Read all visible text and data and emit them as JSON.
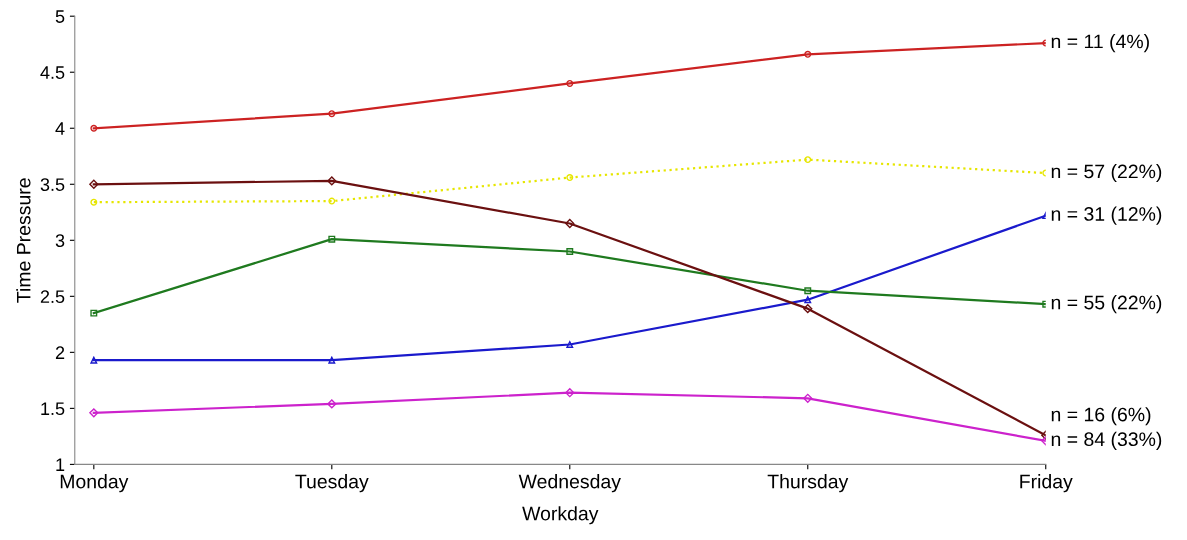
{
  "chart_data": {
    "type": "line",
    "xlabel": "Workday",
    "ylabel": "Time Pressure",
    "categories": [
      "Monday",
      "Tuesday",
      "Wednesday",
      "Thursday",
      "Friday"
    ],
    "ylim": [
      1,
      5
    ],
    "yticks": [
      1,
      1.5,
      2,
      2.5,
      3,
      3.5,
      4,
      4.5,
      5
    ],
    "grid": false,
    "legend": false,
    "series": [
      {
        "name": "n = 11 (4%)",
        "color": "#cc2222",
        "marker": "circle",
        "line_style": "solid",
        "values": [
          4.0,
          4.13,
          4.4,
          4.66,
          4.76
        ]
      },
      {
        "name": "n = 57 (22%)",
        "color": "#e6e600",
        "marker": "circle",
        "line_style": "dotted",
        "values": [
          3.34,
          3.35,
          3.56,
          3.72,
          3.6
        ]
      },
      {
        "name": "n = 31 (12%)",
        "color": "#1a1acc",
        "marker": "triangle",
        "line_style": "solid",
        "values": [
          1.93,
          1.93,
          2.07,
          2.47,
          3.22
        ]
      },
      {
        "name": "n = 55 (22%)",
        "color": "#1f7a1f",
        "marker": "square",
        "line_style": "solid",
        "values": [
          2.35,
          3.01,
          2.9,
          2.55,
          2.43
        ]
      },
      {
        "name": "n = 16 (6%)",
        "color": "#6b1010",
        "marker": "diamond",
        "line_style": "solid",
        "values": [
          3.5,
          3.53,
          3.15,
          2.39,
          1.26
        ]
      },
      {
        "name": "n = 84 (33%)",
        "color": "#cc22cc",
        "marker": "diamond",
        "line_style": "solid",
        "values": [
          1.46,
          1.54,
          1.64,
          1.59,
          1.21
        ]
      }
    ]
  }
}
